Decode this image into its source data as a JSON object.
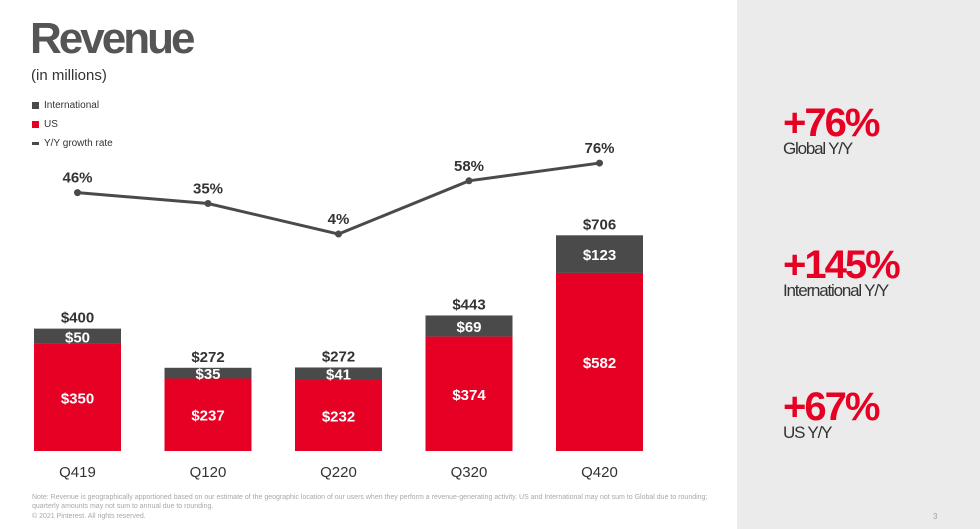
{
  "header": {
    "title": "Revenue",
    "subtitle": "(in millions)"
  },
  "legend": {
    "international": "International",
    "us": "US",
    "growth": "Y/Y growth rate"
  },
  "colors": {
    "us": "#e60023",
    "international": "#4a4a4a",
    "line": "#4a4a4a"
  },
  "chart_data": {
    "type": "bar",
    "stacked": true,
    "categories": [
      "Q419",
      "Q120",
      "Q220",
      "Q320",
      "Q420"
    ],
    "series": [
      {
        "name": "US",
        "values": [
          350,
          237,
          232,
          374,
          582
        ],
        "labels": [
          "$350",
          "$237",
          "$232",
          "$374",
          "$582"
        ]
      },
      {
        "name": "International",
        "values": [
          50,
          35,
          41,
          69,
          123
        ],
        "labels": [
          "$50",
          "$35",
          "$41",
          "$69",
          "$123"
        ]
      }
    ],
    "totals": [
      400,
      272,
      272,
      443,
      706
    ],
    "total_labels": [
      "$400",
      "$272",
      "$272",
      "$443",
      "$706"
    ],
    "growth_line": {
      "name": "Y/Y growth rate",
      "values": [
        46,
        35,
        4,
        58,
        76
      ],
      "labels": [
        "46%",
        "35%",
        "4%",
        "58%",
        "76%"
      ]
    },
    "grid": false,
    "legend_position": "top-left"
  },
  "stats": [
    {
      "value": "+76%",
      "label": "Global Y/Y"
    },
    {
      "value": "+145%",
      "label": "International Y/Y"
    },
    {
      "value": "+67%",
      "label": "US Y/Y"
    }
  ],
  "footer": {
    "note": "Note: Revenue is geographically apportioned based on our estimate of the geographic location of our users when they perform a revenue-generating activity. US and International may not sum to Global due to rounding; quarterly amounts may not sum to annual due to rounding.",
    "copyright": "© 2021 Pinterest. All rights reserved.",
    "page": "3"
  }
}
